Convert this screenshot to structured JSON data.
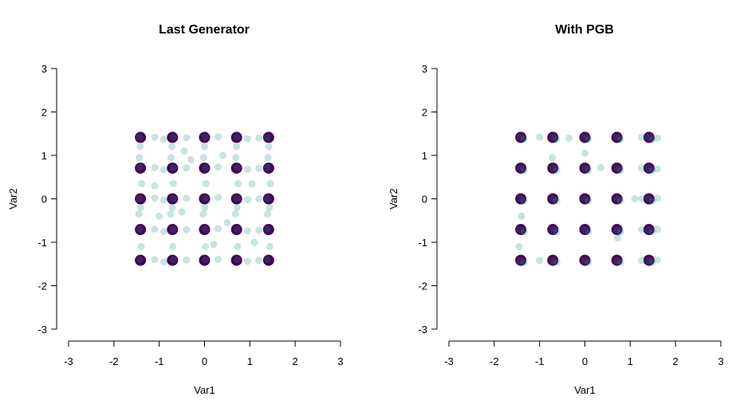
{
  "chart_data": [
    {
      "type": "scatter",
      "title": "Last Generator",
      "xlabel": "Var1",
      "ylabel": "Var2",
      "xlim": [
        -3,
        3
      ],
      "ylim": [
        -3,
        3
      ],
      "xticks": [
        -3,
        -2,
        -1,
        0,
        1,
        2,
        3
      ],
      "yticks": [
        -3,
        -2,
        -1,
        0,
        1,
        2,
        3
      ],
      "series": [
        {
          "color": "#440154",
          "opacity": 1,
          "x": [
            -1.414,
            -0.707,
            0,
            0.707,
            1.414,
            -1.414,
            -0.707,
            0,
            0.707,
            1.414,
            -1.414,
            -0.707,
            0,
            0.707,
            1.414,
            -1.414,
            -0.707,
            0,
            0.707,
            1.414,
            -1.414,
            -0.707,
            0,
            0.707,
            1.414
          ],
          "values": [
            1.414,
            1.414,
            1.414,
            1.414,
            1.414,
            0.707,
            0.707,
            0.707,
            0.707,
            0.707,
            0,
            0,
            0,
            0,
            0,
            -0.707,
            -0.707,
            -0.707,
            -0.707,
            -0.707,
            -1.414,
            -1.414,
            -1.414,
            -1.414,
            -1.414
          ]
        },
        {
          "color": "#21908c",
          "opacity": 0.25,
          "x": [
            -1.43,
            -0.69,
            0.02,
            0.72,
            1.39,
            -1.43,
            -0.69,
            0.02,
            0.72,
            1.39,
            -1.43,
            -0.69,
            0.02,
            0.72,
            1.39,
            -1.43,
            -0.69,
            0.02,
            0.72,
            1.39,
            -1.43,
            -0.69,
            0.02,
            0.72,
            1.39,
            -1.1,
            -0.9,
            -0.4,
            0.3,
            0.95,
            1.2,
            -1.1,
            -0.9,
            -0.4,
            0.3,
            0.95,
            1.2,
            -1.1,
            -0.9,
            -0.4,
            0.3,
            0.95,
            1.2,
            -1.1,
            -0.9,
            -0.4,
            0.3,
            0.95,
            1.2,
            -1.1,
            -0.9,
            -0.4,
            0.3,
            0.95,
            1.2,
            -1.4,
            -1.45,
            -1.41,
            -1.39,
            -1.44,
            -1.42,
            -0.7,
            -0.75,
            -0.71,
            -0.69,
            -0.74,
            -0.72,
            0.02,
            -0.03,
            0.01,
            0.03,
            -0.02,
            0.0,
            0.73,
            0.68,
            0.72,
            0.74,
            0.69,
            0.71,
            1.44,
            1.39,
            1.43,
            1.45,
            1.4,
            1.42,
            -0.45,
            -0.3,
            0.4,
            1.05,
            -1.0,
            0.2,
            -0.5,
            0.5,
            1.1,
            -1.1
          ],
          "values": [
            1.42,
            1.42,
            1.42,
            1.42,
            1.42,
            0.72,
            0.72,
            0.72,
            0.72,
            0.72,
            0.01,
            0.01,
            0.01,
            0.01,
            0.01,
            -0.7,
            -0.7,
            -0.7,
            -0.7,
            -0.7,
            -1.4,
            -1.4,
            -1.4,
            -1.4,
            -1.4,
            1.42,
            1.37,
            1.41,
            1.43,
            1.38,
            1.4,
            0.72,
            0.67,
            0.71,
            0.73,
            0.68,
            0.7,
            0.02,
            -0.03,
            0.01,
            0.03,
            -0.02,
            0.0,
            -0.7,
            -0.75,
            -0.71,
            -0.69,
            -0.74,
            -0.72,
            -1.4,
            -1.45,
            -1.41,
            -1.39,
            -1.44,
            -1.42,
            -1.1,
            -0.35,
            -0.2,
            0.35,
            0.95,
            1.2,
            -1.1,
            -0.35,
            -0.2,
            0.35,
            0.95,
            1.2,
            -1.1,
            -0.35,
            -0.2,
            0.35,
            0.95,
            1.2,
            -1.1,
            -0.35,
            -0.2,
            0.35,
            0.95,
            1.2,
            -1.1,
            -0.35,
            -0.2,
            0.35,
            0.95,
            1.2,
            1.1,
            0.9,
            1.0,
            0.35,
            -0.4,
            -1.05,
            -0.3,
            -0.55,
            -1.0,
            0.3
          ]
        }
      ]
    },
    {
      "type": "scatter",
      "title": "With PGB",
      "xlabel": "Var1",
      "ylabel": "Var2",
      "xlim": [
        -3,
        3
      ],
      "ylim": [
        -3,
        3
      ],
      "xticks": [
        -3,
        -2,
        -1,
        0,
        1,
        2,
        3
      ],
      "yticks": [
        -3,
        -2,
        -1,
        0,
        1,
        2,
        3
      ],
      "series": [
        {
          "color": "#440154",
          "opacity": 1,
          "x": [
            -1.414,
            -0.707,
            0,
            0.707,
            1.414,
            -1.414,
            -0.707,
            0,
            0.707,
            1.414,
            -1.414,
            -0.707,
            0,
            0.707,
            1.414,
            -1.414,
            -0.707,
            0,
            0.707,
            1.414,
            -1.414,
            -0.707,
            0,
            0.707,
            1.414
          ],
          "values": [
            1.414,
            1.414,
            1.414,
            1.414,
            1.414,
            0.707,
            0.707,
            0.707,
            0.707,
            0.707,
            0,
            0,
            0,
            0,
            0,
            -0.707,
            -0.707,
            -0.707,
            -0.707,
            -0.707,
            -1.414,
            -1.414,
            -1.414,
            -1.414,
            -1.414
          ]
        },
        {
          "color": "#21908c",
          "opacity": 0.25,
          "x": [
            -1.42,
            -0.7,
            0.0,
            0.71,
            1.41,
            -1.42,
            -0.7,
            0.0,
            0.71,
            1.41,
            -1.42,
            -0.7,
            0.0,
            0.71,
            1.41,
            -1.42,
            -0.7,
            0.0,
            0.71,
            1.41,
            -1.42,
            -0.7,
            0.0,
            0.71,
            1.41,
            -1.34,
            -0.62,
            0.08,
            0.79,
            1.49,
            -1.34,
            -0.62,
            0.08,
            0.79,
            1.49,
            -1.34,
            -0.62,
            0.08,
            0.79,
            1.49,
            -1.34,
            -0.62,
            0.08,
            0.79,
            1.49,
            -1.34,
            -0.62,
            0.08,
            0.79,
            1.49,
            1.25,
            1.6,
            1.25,
            1.6,
            1.25,
            1.6,
            1.25,
            1.6,
            1.25,
            1.6,
            -1.0,
            -0.35,
            0.35,
            -1.4,
            -1.45,
            0.0,
            -0.72,
            0.72,
            1.1,
            -1.0
          ],
          "values": [
            1.42,
            1.42,
            1.42,
            1.42,
            1.42,
            0.71,
            0.71,
            0.71,
            0.71,
            0.71,
            0.0,
            0.0,
            0.0,
            0.0,
            0.0,
            -0.71,
            -0.71,
            -0.71,
            -0.71,
            -0.71,
            -1.42,
            -1.42,
            -1.42,
            -1.42,
            -1.42,
            1.37,
            1.37,
            1.37,
            1.37,
            1.37,
            0.66,
            0.66,
            0.66,
            0.66,
            0.66,
            -0.05,
            -0.05,
            -0.05,
            -0.05,
            -0.05,
            -0.76,
            -0.76,
            -0.76,
            -0.76,
            -0.76,
            -1.47,
            -1.47,
            -1.47,
            -1.47,
            -1.47,
            1.42,
            1.4,
            0.71,
            0.69,
            0.0,
            0.02,
            -0.71,
            -0.7,
            -1.42,
            -1.41,
            1.42,
            1.4,
            0.72,
            -0.4,
            -1.1,
            1.05,
            0.95,
            -0.9,
            0.0,
            -1.42
          ]
        }
      ]
    }
  ]
}
